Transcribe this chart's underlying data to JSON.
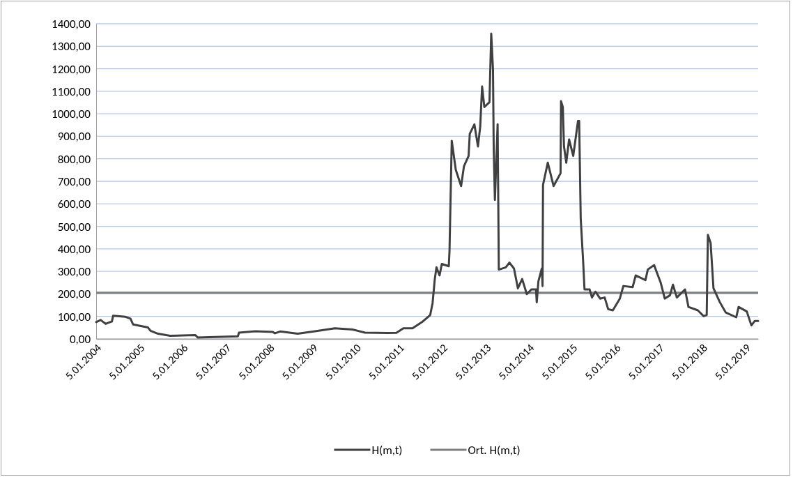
{
  "chart_data": {
    "type": "line",
    "xlim": [
      "2004-01-05",
      "2019-04-21"
    ],
    "xticks": [
      {
        "value": "2004-01-05",
        "label": "5.01.2004"
      },
      {
        "value": "2005-01-05",
        "label": "5.01.2005"
      },
      {
        "value": "2006-01-05",
        "label": "5.01.2006"
      },
      {
        "value": "2007-01-05",
        "label": "5.01.2007"
      },
      {
        "value": "2008-01-05",
        "label": "5.01.2008"
      },
      {
        "value": "2009-01-05",
        "label": "5.01.2009"
      },
      {
        "value": "2010-01-05",
        "label": "5.01.2010"
      },
      {
        "value": "2011-01-05",
        "label": "5.01.2011"
      },
      {
        "value": "2012-01-05",
        "label": "5.01.2012"
      },
      {
        "value": "2013-01-05",
        "label": "5.01.2013"
      },
      {
        "value": "2014-01-05",
        "label": "5.01.2014"
      },
      {
        "value": "2015-01-05",
        "label": "5.01.2015"
      },
      {
        "value": "2016-01-05",
        "label": "5.01.2016"
      },
      {
        "value": "2017-01-05",
        "label": "5.01.2017"
      },
      {
        "value": "2018-01-05",
        "label": "5.01.2018"
      },
      {
        "value": "2019-01-05",
        "label": "5.01.2019"
      }
    ],
    "ylim": [
      0,
      1400
    ],
    "yticks": [
      {
        "value": 0,
        "label": "0,00"
      },
      {
        "value": 100,
        "label": "100,00"
      },
      {
        "value": 200,
        "label": "200,00"
      },
      {
        "value": 300,
        "label": "300,00"
      },
      {
        "value": 400,
        "label": "400,00"
      },
      {
        "value": 500,
        "label": "500,00"
      },
      {
        "value": 600,
        "label": "600,00"
      },
      {
        "value": 700,
        "label": "700,00"
      },
      {
        "value": 800,
        "label": "800,00"
      },
      {
        "value": 900,
        "label": "900,00"
      },
      {
        "value": 1000,
        "label": "1000,00"
      },
      {
        "value": 1100,
        "label": "1100,00"
      },
      {
        "value": 1200,
        "label": "1200,00"
      },
      {
        "value": 1300,
        "label": "1300,00"
      },
      {
        "value": 1400,
        "label": "1400,00"
      }
    ],
    "grid": "y",
    "legend": "bottom",
    "marker": "none",
    "line_style": "solid",
    "x": [
      "2004-01-05",
      "2004-02-12",
      "2004-03-25",
      "2004-05-17",
      "2004-05-27",
      "2004-09-08",
      "2004-10-20",
      "2004-11-12",
      "2005-03-16",
      "2005-04-08",
      "2005-06-10",
      "2005-09-20",
      "2006-04-21",
      "2006-05-12",
      "2007-04-15",
      "2007-04-24",
      "2007-09-09",
      "2008-02-03",
      "2008-02-21",
      "2008-04-06",
      "2008-08-31",
      "2009-01-25",
      "2009-07-12",
      "2009-12-06",
      "2010-03-22",
      "2010-09-27",
      "2010-12-12",
      "2011-02-09",
      "2011-04-27",
      "2011-07-16",
      "2011-09-23",
      "2011-10-13",
      "2011-11-01",
      "2011-11-15",
      "2011-12-11",
      "2011-12-30",
      "2012-02-27",
      "2012-03-04",
      "2012-03-23",
      "2012-04-26",
      "2012-06-10",
      "2012-07-04",
      "2012-08-12",
      "2012-08-22",
      "2012-09-30",
      "2012-10-30",
      "2012-11-18",
      "2012-12-04",
      "2012-12-23",
      "2013-02-04",
      "2013-02-19",
      "2013-03-06",
      "2013-03-12",
      "2013-03-22",
      "2013-04-14",
      "2013-04-24",
      "2013-06-22",
      "2013-07-22",
      "2013-08-30",
      "2013-10-02",
      "2013-11-07",
      "2013-12-16",
      "2014-01-24",
      "2014-03-04",
      "2014-03-10",
      "2014-03-24",
      "2014-04-22",
      "2014-04-28",
      "2014-05-02",
      "2014-06-11",
      "2014-07-30",
      "2014-09-27",
      "2014-10-01",
      "2014-10-16",
      "2014-10-26",
      "2014-11-14",
      "2014-12-08",
      "2015-01-12",
      "2015-02-21",
      "2015-03-03",
      "2015-03-16",
      "2015-04-05",
      "2015-04-17",
      "2015-05-30",
      "2015-06-19",
      "2015-07-18",
      "2015-08-27",
      "2015-10-04",
      "2015-11-03",
      "2015-12-12",
      "2016-02-09",
      "2016-03-10",
      "2016-05-27",
      "2016-06-22",
      "2016-09-12",
      "2016-10-02",
      "2016-11-24",
      "2017-01-18",
      "2017-02-22",
      "2017-04-07",
      "2017-05-02",
      "2017-06-04",
      "2017-08-12",
      "2017-09-10",
      "2017-11-28",
      "2018-01-16",
      "2018-02-11",
      "2018-02-21",
      "2018-03-16",
      "2018-04-09",
      "2018-06-02",
      "2018-07-22",
      "2018-10-18",
      "2018-11-07",
      "2019-01-15",
      "2019-02-23",
      "2019-03-24",
      "2019-04-21"
    ],
    "series": [
      {
        "name": "H(m,t)",
        "color": "#404040",
        "values": [
          75,
          84,
          67,
          78,
          103,
          98,
          90,
          64,
          51,
          36,
          23,
          14,
          17,
          6,
          12,
          28,
          34,
          31,
          25,
          33,
          23,
          34,
          47,
          42,
          28,
          26,
          27,
          47,
          47,
          75,
          106,
          158,
          266,
          318,
          282,
          333,
          323,
          390,
          880,
          751,
          679,
          767,
          813,
          911,
          953,
          855,
          942,
          1121,
          1030,
          1051,
          1356,
          1195,
          845,
          617,
          953,
          308,
          318,
          339,
          313,
          225,
          266,
          199,
          220,
          220,
          163,
          256,
          313,
          235,
          684,
          783,
          679,
          736,
          1056,
          1030,
          855,
          783,
          886,
          813,
          968,
          968,
          535,
          349,
          220,
          220,
          184,
          210,
          179,
          184,
          132,
          127,
          179,
          235,
          230,
          282,
          261,
          308,
          328,
          251,
          179,
          194,
          241,
          184,
          220,
          142,
          127,
          101,
          106,
          462,
          426,
          225,
          163,
          117,
          96,
          142,
          122,
          60,
          80,
          80
        ]
      }
    ],
    "ref_lines": [
      {
        "axis": "y",
        "value": 205,
        "label": "Ort. H(m,t)",
        "color": "#808080"
      }
    ]
  }
}
